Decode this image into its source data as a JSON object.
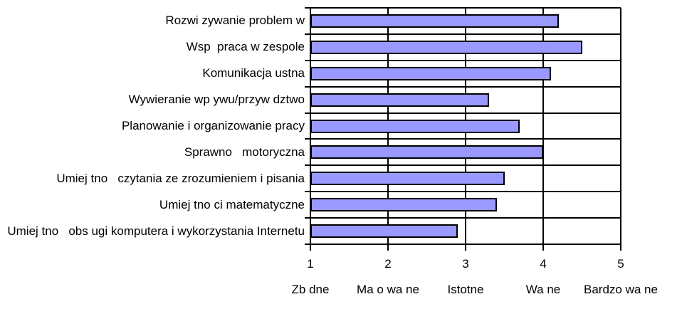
{
  "chart_data": {
    "type": "bar",
    "orientation": "horizontal",
    "title": "",
    "categories": [
      "Rozwi zywanie problem w",
      "Wsp  praca w zespole",
      "Komunikacja ustna",
      "Wywieranie wp ywu/przyw dztwo",
      "Planowanie i organizowanie pracy",
      "Sprawno   motoryczna",
      "Umiej tno   czytania ze zrozumieniem i pisania",
      "Umiej tno ci matematyczne",
      "Umiej tno   obs ugi komputera i wykorzystania Internetu"
    ],
    "values": [
      4.2,
      4.5,
      4.1,
      3.3,
      3.7,
      4.0,
      3.5,
      3.4,
      2.9
    ],
    "xlabel": "",
    "ylabel": "",
    "xlim": [
      1,
      5
    ],
    "x_ticks": [
      1,
      2,
      3,
      4,
      5
    ],
    "x_tick_labels": [
      "1",
      "2",
      "3",
      "4",
      "5"
    ],
    "x_scale_labels": [
      "Zb dne",
      "Ma o wa ne",
      "Istotne",
      "Wa ne",
      "Bardzo wa ne"
    ],
    "grid": true,
    "legend": false,
    "colors": {
      "bar_fill": "#9999ff",
      "bar_border": "#000000",
      "gridline": "#000000",
      "axis": "#000000",
      "background": "#ffffff",
      "text": "#000000"
    }
  }
}
